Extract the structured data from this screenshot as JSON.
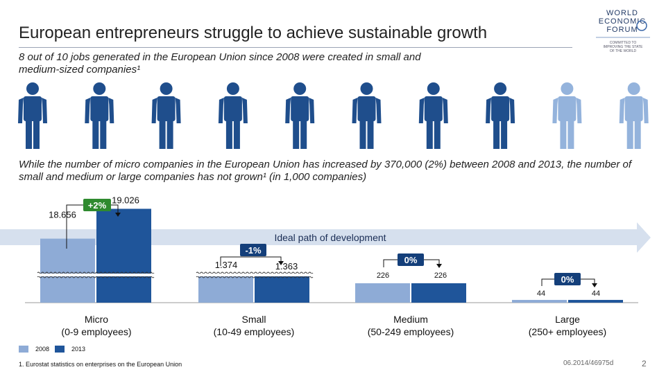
{
  "header": {
    "title": "European entrepreneurs struggle to achieve sustainable growth",
    "subtitle": "8 out of 10 jobs generated in the European Union since 2008 were created in small and medium-sized companies¹",
    "logo_text": [
      "WORLD",
      "ECONOMIC",
      "FORUM"
    ],
    "logo_tagline": [
      "COMMITTED TO",
      "IMPROVING THE STATE",
      "OF THE WORLD"
    ]
  },
  "people": {
    "total": 10,
    "highlighted": 8,
    "dark_color": "#1f4e8c",
    "light_color": "#94b3dc"
  },
  "description": "While the number of micro companies in the European Union has increased by 370,000  (2%) between 2008 and 2013, the number of small and medium or large companies has not grown¹ (in 1,000 companies)",
  "arrow_label": "Ideal path of development",
  "chart_data": {
    "type": "bar",
    "categories": [
      "Micro\n(0-9 employees)",
      "Small\n(10-49 employees)",
      "Medium\n(50-249 employees)",
      "Large\n(250+ employees)"
    ],
    "category_lines": [
      [
        "Micro",
        "(0-9 employees)"
      ],
      [
        "Small",
        "(10-49 employees)"
      ],
      [
        "Medium",
        "(50-249 employees)"
      ],
      [
        "Large",
        "(250+ employees)"
      ]
    ],
    "series": [
      {
        "name": "2008",
        "color": "#8eabd6",
        "values": [
          18656,
          1374,
          226,
          44
        ],
        "labels": [
          "18.656",
          "1.374",
          "226",
          "44"
        ]
      },
      {
        "name": "2013",
        "color": "#1f559a",
        "values": [
          19026,
          1363,
          226,
          44
        ],
        "labels": [
          "19.026",
          "1.363",
          "226",
          "44"
        ]
      }
    ],
    "changes": [
      "+2%",
      "-1%",
      "0%",
      "0%"
    ],
    "axis_broken": true
  },
  "footer": {
    "footnote": "1. Eurostat statistics on enterprises on the European Union",
    "code": "06.2014/46975d",
    "page": "2"
  },
  "colors": {
    "dark_blue": "#1f559a",
    "light_blue": "#8eabd6",
    "arrow_fill": "#d6e0ee",
    "badge_green": "#2f8a2f",
    "badge_dark": "#143f7a"
  }
}
